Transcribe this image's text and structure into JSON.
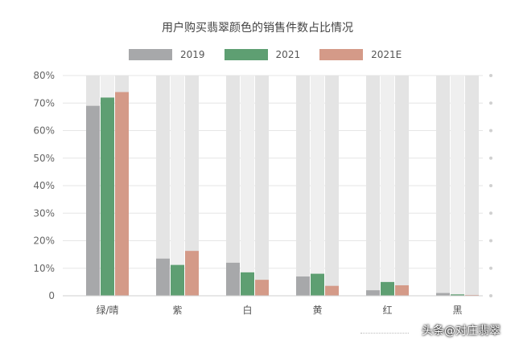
{
  "title": "用户购买翡翠颜色的销售件数占比情况",
  "watermark": "头条@对庄翡翠",
  "chart_data": {
    "type": "bar",
    "title": "用户购买翡翠颜色的销售件数占比情况",
    "categories": [
      "绿/晴",
      "紫",
      "白",
      "黄",
      "红",
      "黑"
    ],
    "series": [
      {
        "name": "2019",
        "color": "#a7a8aa",
        "values": [
          69,
          13.5,
          12,
          7,
          2,
          1
        ]
      },
      {
        "name": "2021",
        "color": "#5e9f72",
        "values": [
          72,
          11.2,
          8.5,
          8,
          5,
          0.5
        ]
      },
      {
        "name": "2021E",
        "color": "#d49a88",
        "values": [
          74,
          16.3,
          5.8,
          3.6,
          3.8,
          0.3
        ]
      }
    ],
    "y_ticks": [
      "0",
      "10%",
      "20%",
      "30%",
      "40%",
      "50%",
      "60%",
      "70%",
      "80%"
    ],
    "ylim": [
      0,
      80
    ],
    "grid": true,
    "legend_position": "top"
  }
}
